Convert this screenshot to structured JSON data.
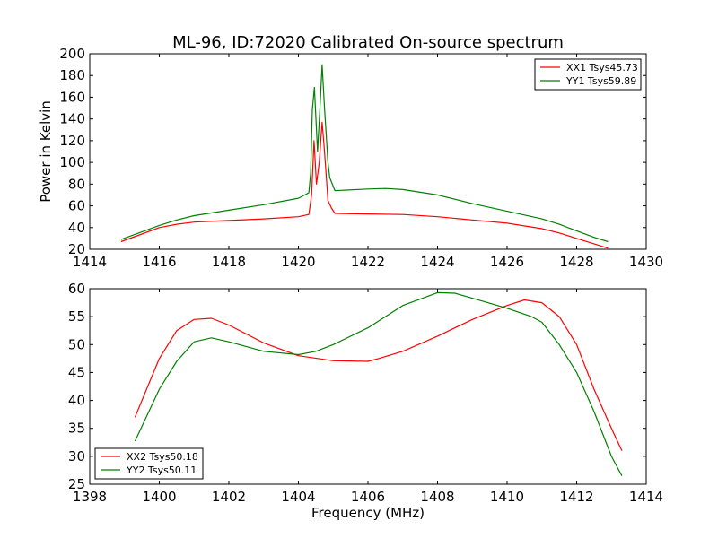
{
  "chart_data": [
    {
      "type": "line",
      "title": "ML-96, ID:72020 Calibrated On-source spectrum",
      "xlabel": "",
      "ylabel": "Power in Kelvin",
      "xlim": [
        1414,
        1430
      ],
      "ylim": [
        20,
        200
      ],
      "xticks": [
        1414,
        1416,
        1418,
        1420,
        1422,
        1424,
        1426,
        1428,
        1430
      ],
      "yticks": [
        20,
        40,
        60,
        80,
        100,
        120,
        140,
        160,
        180,
        200
      ],
      "legend_position": "top-right",
      "series": [
        {
          "name": "XX1 Tsys45.73",
          "color": "#ff0000",
          "x": [
            1414.9,
            1415.5,
            1416,
            1416.5,
            1417,
            1418,
            1419,
            1420,
            1420.3,
            1420.38,
            1420.45,
            1420.52,
            1420.6,
            1420.68,
            1420.75,
            1420.85,
            1420.95,
            1421.05,
            1422,
            1423,
            1424,
            1425,
            1426,
            1427,
            1427.5,
            1428,
            1428.5,
            1428.9
          ],
          "y": [
            27,
            34,
            40,
            43,
            45,
            46.5,
            48,
            50,
            52,
            70,
            120,
            80,
            100,
            137,
            110,
            65,
            58,
            53,
            52.5,
            52,
            50,
            47,
            44,
            39,
            35,
            30,
            25,
            21
          ]
        },
        {
          "name": "YY1 Tsys59.89",
          "color": "#008000",
          "x": [
            1414.9,
            1415.5,
            1416,
            1416.5,
            1417,
            1418,
            1419,
            1420,
            1420.3,
            1420.35,
            1420.4,
            1420.46,
            1420.55,
            1420.62,
            1420.68,
            1420.75,
            1420.85,
            1420.9,
            1421.05,
            1422,
            1422.5,
            1423,
            1424,
            1425,
            1426,
            1427,
            1427.5,
            1428,
            1428.5,
            1428.9
          ],
          "y": [
            29,
            36,
            42,
            47,
            51,
            56,
            61,
            67,
            72,
            90,
            148,
            169,
            110,
            150,
            190,
            150,
            100,
            86,
            74,
            75.5,
            76,
            75,
            70,
            62,
            55,
            48,
            43,
            37,
            31,
            27
          ]
        }
      ]
    },
    {
      "type": "line",
      "title": "",
      "xlabel": "Frequency (MHz)",
      "ylabel": "",
      "xlim": [
        1398,
        1414
      ],
      "ylim": [
        25,
        60
      ],
      "xticks": [
        1398,
        1400,
        1402,
        1404,
        1406,
        1408,
        1410,
        1412,
        1414
      ],
      "yticks": [
        25,
        30,
        35,
        40,
        45,
        50,
        55,
        60
      ],
      "legend_position": "bottom-left",
      "series": [
        {
          "name": "XX2 Tsys50.18",
          "color": "#ff0000",
          "x": [
            1399.3,
            1400,
            1400.5,
            1401,
            1401.5,
            1402,
            1403,
            1404,
            1405,
            1406,
            1406.3,
            1407,
            1408,
            1409,
            1410,
            1410.5,
            1411,
            1411.5,
            1412,
            1412.5,
            1413,
            1413.3
          ],
          "y": [
            37,
            47.5,
            52.5,
            54.5,
            54.7,
            53.5,
            50.3,
            48,
            47.1,
            47,
            47.5,
            48.8,
            51.5,
            54.5,
            57,
            58,
            57.5,
            55,
            50,
            42,
            35,
            31
          ]
        },
        {
          "name": "YY2 Tsys50.11",
          "color": "#008000",
          "x": [
            1399.3,
            1400,
            1400.5,
            1401,
            1401.5,
            1402,
            1403,
            1404,
            1404.5,
            1405,
            1406,
            1407,
            1408,
            1408.5,
            1409,
            1410,
            1410.7,
            1411,
            1411.5,
            1412,
            1412.5,
            1413,
            1413.3
          ],
          "y": [
            32.7,
            42,
            47,
            50.5,
            51.2,
            50.5,
            48.8,
            48.2,
            48.8,
            50,
            53,
            57,
            59.3,
            59.2,
            58.3,
            56.5,
            55,
            54,
            50,
            45,
            38,
            30,
            26.5
          ]
        }
      ]
    }
  ]
}
